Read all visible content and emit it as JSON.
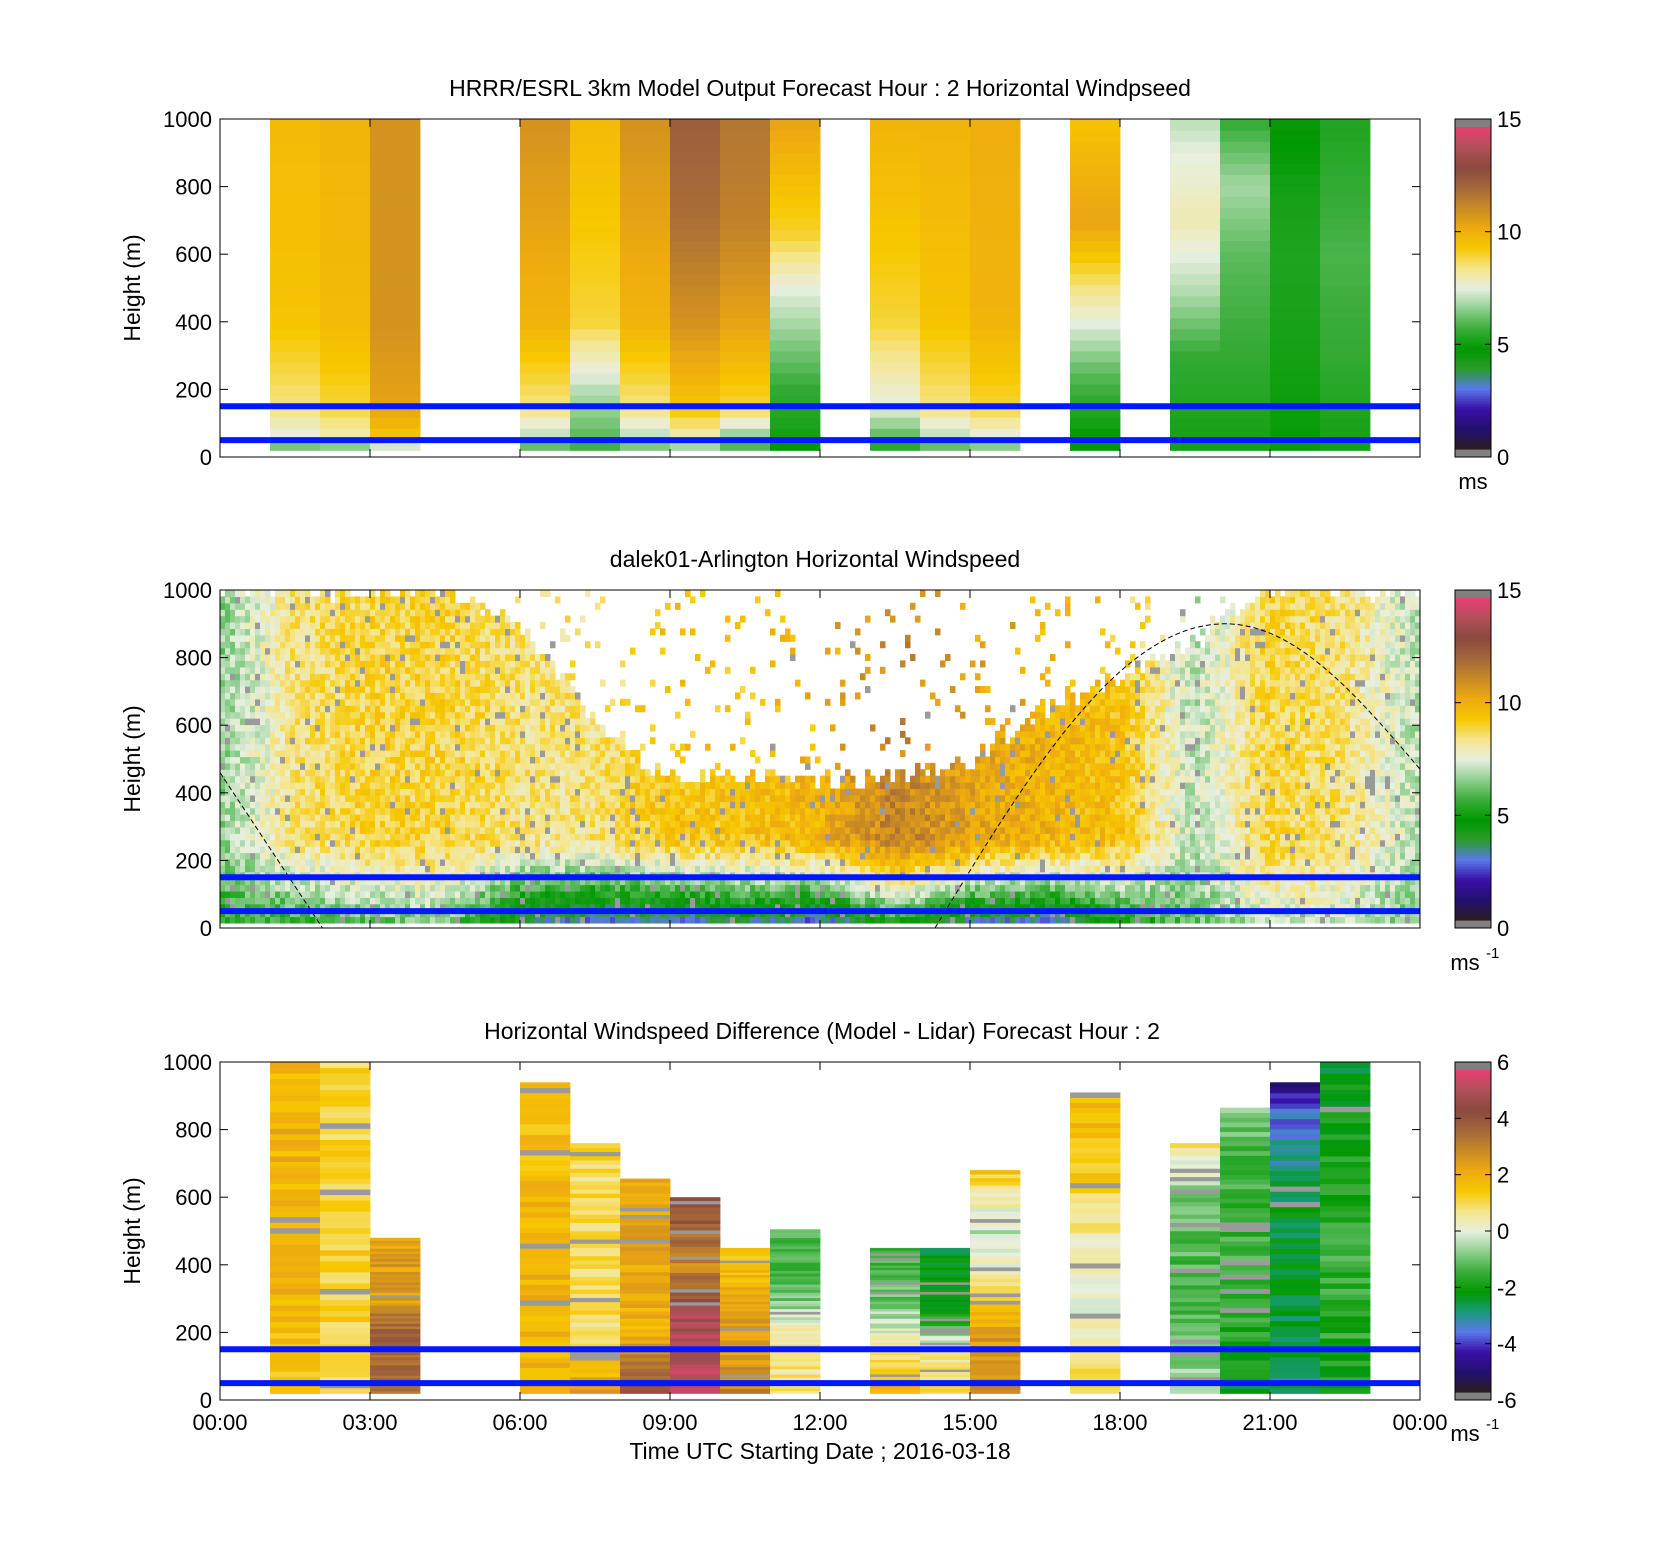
{
  "figure": {
    "colors": {
      "background": "#ffffff",
      "reference_line": "#0018ff",
      "axes": "#000000"
    },
    "time_axis": {
      "tick_labels": [
        "00:00",
        "03:00",
        "06:00",
        "09:00",
        "12:00",
        "15:00",
        "18:00",
        "21:00",
        "00:00"
      ],
      "label": "Time UTC  Starting Date ; 2016-03-18"
    },
    "colormap_speed": [
      "#2b1e1e",
      "#23106e",
      "#3a0fa6",
      "#5a78ea",
      "#2a9c2a",
      "#009900",
      "#3aad3a",
      "#8fcf8f",
      "#e8efe0",
      "#f5e58a",
      "#f7c800",
      "#eeaa10",
      "#c98a25",
      "#a4683a",
      "#8a4a3e",
      "#b0505a",
      "#e84070",
      "#808080"
    ],
    "colormap_diff": [
      "#2b1e1e",
      "#23106e",
      "#3a0fa6",
      "#5a78ea",
      "#1a9a7a",
      "#009900",
      "#3aad3a",
      "#8fcf8f",
      "#e8efe0",
      "#f5e58a",
      "#f7c800",
      "#eeaa10",
      "#c98a25",
      "#a4683a",
      "#8a4a3e",
      "#b0505a",
      "#e84070",
      "#808080"
    ]
  },
  "chart_data": [
    {
      "type": "heatmap",
      "title": "HRRR/ESRL 3km Model Output   Forecast Hour : 2 Horizontal Windpseed",
      "ylabel": "Height (m)",
      "ylim": [
        0,
        1000
      ],
      "yticks": [
        0,
        200,
        400,
        600,
        800,
        1000
      ],
      "xlim_hours": [
        0,
        24
      ],
      "clim": [
        0,
        15
      ],
      "colorbar_ticks": [
        0,
        5,
        10,
        15
      ],
      "colorbar_units": "ms",
      "reference_heights_m": [
        50,
        150
      ],
      "columns": [
        {
          "t": 1,
          "profile": [
            [
              20,
              5.5
            ],
            [
              60,
              7.5
            ],
            [
              150,
              8.5
            ],
            [
              400,
              9.5
            ],
            [
              1000,
              9.8
            ]
          ]
        },
        {
          "t": 2,
          "profile": [
            [
              20,
              5.5
            ],
            [
              60,
              8
            ],
            [
              150,
              9
            ],
            [
              400,
              9.8
            ],
            [
              1000,
              10
            ]
          ]
        },
        {
          "t": 3,
          "profile": [
            [
              20,
              5.8
            ],
            [
              60,
              9.5
            ],
            [
              150,
              10.5
            ],
            [
              400,
              11
            ],
            [
              1000,
              11
            ]
          ]
        },
        {
          "t": 6,
          "profile": [
            [
              20,
              5.5
            ],
            [
              60,
              7
            ],
            [
              150,
              8.5
            ],
            [
              400,
              10
            ],
            [
              1000,
              11
            ]
          ]
        },
        {
          "t": 7,
          "profile": [
            [
              20,
              5.5
            ],
            [
              60,
              6
            ],
            [
              200,
              7
            ],
            [
              400,
              9
            ],
            [
              1000,
              9.8
            ]
          ]
        },
        {
          "t": 8,
          "profile": [
            [
              20,
              6
            ],
            [
              60,
              7
            ],
            [
              150,
              8.5
            ],
            [
              400,
              10
            ],
            [
              1000,
              11
            ]
          ]
        },
        {
          "t": 9,
          "profile": [
            [
              20,
              6
            ],
            [
              60,
              8
            ],
            [
              150,
              9.5
            ],
            [
              400,
              11
            ],
            [
              700,
              12
            ],
            [
              1000,
              12.5
            ]
          ]
        },
        {
          "t": 10,
          "profile": [
            [
              20,
              5.5
            ],
            [
              60,
              6.5
            ],
            [
              150,
              9
            ],
            [
              400,
              10.5
            ],
            [
              700,
              11.5
            ],
            [
              1000,
              11.8
            ]
          ]
        },
        {
          "t": 11,
          "profile": [
            [
              20,
              4.5
            ],
            [
              60,
              5
            ],
            [
              200,
              5.5
            ],
            [
              350,
              6.5
            ],
            [
              500,
              7.5
            ],
            [
              650,
              9
            ],
            [
              1000,
              10.5
            ]
          ]
        },
        {
          "t": 13,
          "profile": [
            [
              20,
              5
            ],
            [
              60,
              6
            ],
            [
              150,
              7.5
            ],
            [
              400,
              9
            ],
            [
              1000,
              10
            ]
          ]
        },
        {
          "t": 14,
          "profile": [
            [
              20,
              5.5
            ],
            [
              60,
              7
            ],
            [
              150,
              8.5
            ],
            [
              400,
              9.5
            ],
            [
              1000,
              10
            ]
          ]
        },
        {
          "t": 15,
          "profile": [
            [
              20,
              5.8
            ],
            [
              60,
              7.5
            ],
            [
              150,
              9
            ],
            [
              400,
              10
            ],
            [
              1000,
              10.2
            ]
          ]
        },
        {
          "t": 17,
          "profile": [
            [
              20,
              4.5
            ],
            [
              100,
              5
            ],
            [
              250,
              6
            ],
            [
              400,
              7.5
            ],
            [
              600,
              9.5
            ],
            [
              700,
              10.5
            ],
            [
              1000,
              9.5
            ]
          ]
        },
        {
          "t": 19,
          "profile": [
            [
              20,
              5
            ],
            [
              300,
              5.5
            ],
            [
              500,
              7
            ],
            [
              700,
              8
            ],
            [
              900,
              7.5
            ],
            [
              1000,
              7
            ]
          ]
        },
        {
          "t": 20,
          "profile": [
            [
              20,
              5
            ],
            [
              300,
              5.5
            ],
            [
              600,
              6
            ],
            [
              800,
              6.8
            ],
            [
              1000,
              5.5
            ]
          ]
        },
        {
          "t": 21,
          "profile": [
            [
              20,
              4.8
            ],
            [
              300,
              5
            ],
            [
              600,
              5.2
            ],
            [
              800,
              5
            ],
            [
              1000,
              4.5
            ]
          ]
        },
        {
          "t": 22,
          "profile": [
            [
              20,
              5
            ],
            [
              300,
              5.5
            ],
            [
              600,
              5.8
            ],
            [
              800,
              5.5
            ],
            [
              1000,
              5.2
            ]
          ]
        }
      ]
    },
    {
      "type": "heatmap",
      "title": "dalek01-Arlington  Horizontal Windspeed",
      "ylabel": "Height (m)",
      "ylim": [
        0,
        1000
      ],
      "yticks": [
        0,
        200,
        400,
        600,
        800,
        1000
      ],
      "xlim_hours": [
        0,
        24
      ],
      "clim": [
        0,
        15
      ],
      "colorbar_ticks": [
        0,
        5,
        10,
        15
      ],
      "colorbar_units": "ms",
      "colorbar_units_exp": "-1",
      "reference_heights_m": [
        50,
        150
      ],
      "boundary_layer_curve": true,
      "profile_times_h": [
        0,
        1.5,
        3,
        4.5,
        6,
        7.5,
        9,
        10.5,
        12,
        13.5,
        15,
        16.5,
        18,
        19.5,
        21,
        22.5,
        24
      ],
      "profile_tops_m": [
        1000,
        1000,
        1000,
        1000,
        900,
        600,
        450,
        450,
        430,
        450,
        500,
        650,
        750,
        850,
        1000,
        1000,
        1000
      ],
      "low_level_speed_ms": [
        5,
        5,
        5.5,
        6,
        2.5,
        2,
        1.5,
        2.5,
        1.5,
        4,
        2,
        1.5,
        4,
        6,
        7,
        7,
        6
      ],
      "upper_level_speed_ms": [
        6.5,
        8.5,
        9,
        9,
        8.5,
        8.5,
        9.5,
        9.5,
        10,
        11.5,
        10.5,
        10,
        9.5,
        7,
        9,
        8.5,
        7
      ]
    },
    {
      "type": "heatmap",
      "title": "Horizontal Windspeed Difference (Model - Lidar) Forecast Hour : 2",
      "xlabel": "Time UTC  Starting Date ; 2016-03-18",
      "ylabel": "Height (m)",
      "ylim": [
        0,
        1000
      ],
      "yticks": [
        0,
        200,
        400,
        600,
        800,
        1000
      ],
      "xlim_hours": [
        0,
        24
      ],
      "clim": [
        -6,
        6
      ],
      "colorbar_ticks": [
        -6,
        -4,
        -2,
        0,
        2,
        4,
        6
      ],
      "colorbar_units": "ms",
      "colorbar_units_exp": "-1",
      "reference_heights_m": [
        50,
        150
      ],
      "columns": [
        {
          "t": 1,
          "top_m": 1000,
          "profile": [
            [
              20,
              1.5
            ],
            [
              400,
              2
            ],
            [
              1000,
              2
            ]
          ]
        },
        {
          "t": 2,
          "top_m": 1000,
          "profile": [
            [
              20,
              1
            ],
            [
              400,
              1.3
            ],
            [
              1000,
              1.2
            ]
          ]
        },
        {
          "t": 3,
          "top_m": 480,
          "profile": [
            [
              20,
              3.5
            ],
            [
              200,
              4
            ],
            [
              300,
              2.5
            ],
            [
              480,
              2.5
            ]
          ]
        },
        {
          "t": 6,
          "top_m": 940,
          "profile": [
            [
              20,
              2
            ],
            [
              400,
              2
            ],
            [
              940,
              1.5
            ]
          ]
        },
        {
          "t": 7,
          "top_m": 760,
          "profile": [
            [
              20,
              2.5
            ],
            [
              200,
              1
            ],
            [
              760,
              1
            ]
          ]
        },
        {
          "t": 8,
          "top_m": 655,
          "profile": [
            [
              20,
              4.5
            ],
            [
              200,
              2
            ],
            [
              655,
              2.5
            ]
          ]
        },
        {
          "t": 9,
          "top_m": 600,
          "profile": [
            [
              20,
              5.5
            ],
            [
              250,
              5.2
            ],
            [
              400,
              3
            ],
            [
              600,
              4.5
            ]
          ]
        },
        {
          "t": 10,
          "top_m": 450,
          "profile": [
            [
              20,
              3
            ],
            [
              200,
              2.5
            ],
            [
              450,
              1.5
            ]
          ]
        },
        {
          "t": 11,
          "top_m": 505,
          "profile": [
            [
              20,
              1
            ],
            [
              200,
              0.5
            ],
            [
              300,
              -1
            ],
            [
              505,
              -1.5
            ]
          ]
        },
        {
          "t": 13,
          "top_m": 450,
          "profile": [
            [
              20,
              2
            ],
            [
              150,
              0.5
            ],
            [
              300,
              -1
            ],
            [
              450,
              -1.5
            ]
          ]
        },
        {
          "t": 14,
          "top_m": 450,
          "profile": [
            [
              20,
              1
            ],
            [
              150,
              0.5
            ],
            [
              250,
              -2
            ],
            [
              400,
              -2.5
            ]
          ]
        },
        {
          "t": 15,
          "top_m": 680,
          "profile": [
            [
              20,
              3
            ],
            [
              200,
              2.5
            ],
            [
              300,
              1
            ],
            [
              500,
              -0.5
            ],
            [
              680,
              1.5
            ]
          ]
        },
        {
          "t": 17,
          "top_m": 910,
          "profile": [
            [
              20,
              1
            ],
            [
              300,
              0
            ],
            [
              500,
              0.5
            ],
            [
              700,
              1.5
            ],
            [
              910,
              2
            ]
          ]
        },
        {
          "t": 19,
          "top_m": 760,
          "profile": [
            [
              20,
              -0.5
            ],
            [
              300,
              -1.5
            ],
            [
              600,
              -1
            ],
            [
              760,
              1
            ]
          ]
        },
        {
          "t": 20,
          "top_m": 865,
          "profile": [
            [
              20,
              -2.5
            ],
            [
              300,
              -1.5
            ],
            [
              600,
              -1.5
            ],
            [
              865,
              -1
            ]
          ]
        },
        {
          "t": 21,
          "top_m": 940,
          "profile": [
            [
              20,
              -3
            ],
            [
              300,
              -2.5
            ],
            [
              600,
              -2.5
            ],
            [
              800,
              -3.5
            ],
            [
              940,
              -5
            ]
          ]
        },
        {
          "t": 22,
          "top_m": 1000,
          "profile": [
            [
              20,
              -2
            ],
            [
              400,
              -1.5
            ],
            [
              800,
              -2
            ],
            [
              1000,
              -2.5
            ]
          ]
        }
      ]
    }
  ]
}
